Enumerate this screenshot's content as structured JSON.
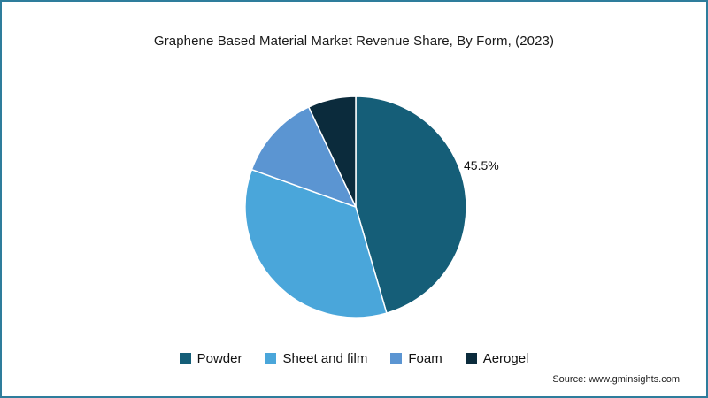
{
  "chart_data": {
    "type": "pie",
    "title": "Graphene Based Material Market Revenue Share, By Form, (2023)",
    "labels": [
      "Powder",
      "Sheet and film",
      "Foam",
      "Aerogel"
    ],
    "values": [
      45.5,
      35.0,
      12.5,
      7.0
    ],
    "colors": [
      "#155e78",
      "#4aa6da",
      "#5b95d2",
      "#0b2b3c"
    ],
    "data_label": {
      "text": "45.5%",
      "slice": "Powder"
    },
    "legend_position": "bottom",
    "start_angle_deg": 0,
    "direction": "clockwise"
  },
  "source_text": "Source: www.gminsights.com",
  "colors": {
    "frame_border": "#2e7d9c",
    "slice_stroke": "#ffffff"
  }
}
